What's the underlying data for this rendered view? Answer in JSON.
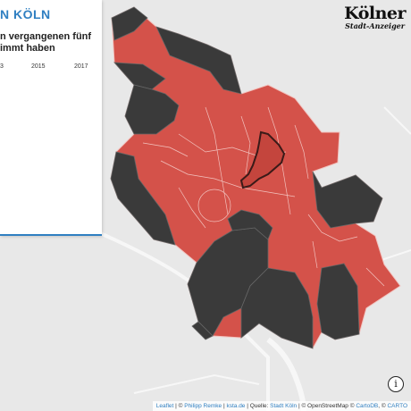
{
  "panel": {
    "title": "N KÖLN",
    "subtitle_line1": "n vergangenen fünf",
    "subtitle_line2": "immt haben",
    "years": [
      "3",
      "2015",
      "2017"
    ]
  },
  "logo": {
    "main": "Kölner",
    "sub": "Stadt-Anzeiger"
  },
  "info_button": {
    "label": "i"
  },
  "attribution": {
    "leaflet": "Leaflet",
    "sep1": " | © ",
    "author": "Philipp Remke",
    "sep2": " | ",
    "ksta": "ksta.de",
    "sep3": " | Quelle: ",
    "source": "Stadt Köln",
    "sep4": " | © OpenStreetMap © ",
    "cartodb": "CartoDB",
    "sep5": ", © ",
    "carto": "CARTO"
  },
  "colors": {
    "red_district": "#d4524a",
    "dark_district": "#3a3a3a",
    "border": "#f4d0cc",
    "river": "#f4f4f4",
    "background": "#e8e8e8",
    "accent": "#2f7fc1"
  }
}
